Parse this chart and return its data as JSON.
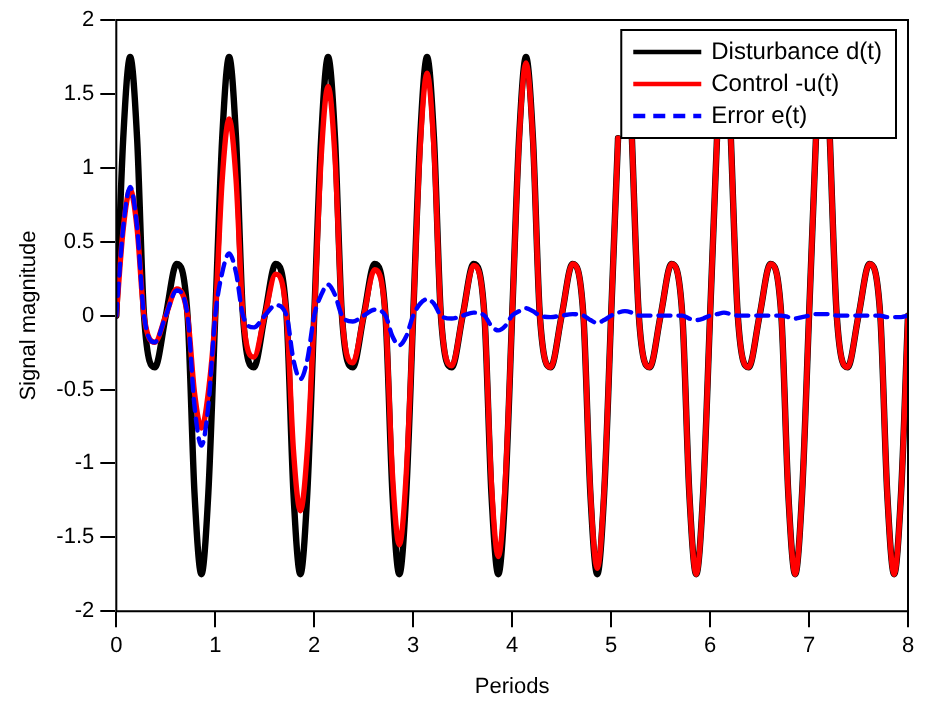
{
  "chart_data": {
    "type": "line",
    "xlabel": "Periods",
    "ylabel": "Signal magnitude",
    "xlim": [
      0,
      8
    ],
    "xticks": [
      0,
      1,
      2,
      3,
      4,
      5,
      6,
      7,
      8
    ],
    "ylim": [
      -2,
      2
    ],
    "yticks": [
      -2,
      -1.5,
      -1,
      -0.5,
      0,
      0.5,
      1,
      1.5,
      2
    ],
    "grid": false,
    "legend": "top right",
    "marker": "none",
    "x": [
      0,
      0.07,
      0.14,
      0.21,
      0.28,
      0.39,
      0.5,
      0.61,
      0.72,
      0.79,
      0.86,
      0.93,
      1,
      1.07,
      1.14,
      1.21,
      1.28,
      1.39,
      1.5,
      1.61,
      1.72,
      1.79,
      1.86,
      1.93,
      2,
      2.07,
      2.14,
      2.21,
      2.28,
      2.39,
      2.5,
      2.61,
      2.72,
      2.79,
      2.86,
      2.93,
      3,
      3.07,
      3.14,
      3.21,
      3.28,
      3.39,
      3.5,
      3.61,
      3.72,
      3.79,
      3.86,
      3.93,
      4,
      4.07,
      4.14,
      4.21,
      4.28,
      4.39,
      4.5,
      4.61,
      4.72,
      4.79,
      4.86,
      4.93,
      5,
      5.07,
      5.14,
      5.21,
      5.28,
      5.39,
      5.5,
      5.61,
      5.72,
      5.79,
      5.86,
      5.93,
      6,
      6.07,
      6.14,
      6.21,
      6.28,
      6.39,
      6.5,
      6.61,
      6.72,
      6.79,
      6.86,
      6.93,
      7,
      7.07,
      7.14,
      7.21,
      7.28,
      7.39,
      7.5,
      7.61,
      7.72,
      7.79,
      7.86,
      7.93,
      8
    ],
    "series": [
      {
        "name": "Disturbance d(t)",
        "color": "#000000",
        "line_style": "solid",
        "values": [
          0,
          1.2,
          1.75,
          1.2,
          0,
          -0.35,
          0,
          0.35,
          0,
          -1.2,
          -1.75,
          -1.2,
          0,
          1.2,
          1.75,
          1.2,
          0,
          -0.35,
          0,
          0.35,
          0,
          -1.2,
          -1.75,
          -1.2,
          0,
          1.2,
          1.75,
          1.2,
          0,
          -0.35,
          0,
          0.35,
          0,
          -1.2,
          -1.75,
          -1.2,
          0,
          1.2,
          1.75,
          1.2,
          0,
          -0.35,
          0,
          0.35,
          0,
          -1.2,
          -1.75,
          -1.2,
          0,
          1.2,
          1.75,
          1.2,
          0,
          -0.35,
          0,
          0.35,
          0,
          -1.2,
          -1.75,
          -1.2,
          0,
          1.2,
          null,
          1.2,
          0,
          -0.35,
          0,
          0.35,
          0,
          -1.2,
          -1.75,
          -1.2,
          0,
          1.2,
          null,
          1.2,
          0,
          -0.35,
          0,
          0.35,
          0,
          -1.2,
          -1.75,
          -1.2,
          0,
          1.2,
          null,
          1.2,
          0,
          -0.35,
          0,
          0.35,
          0,
          -1.2,
          -1.75,
          -1.2,
          0
        ]
      },
      {
        "name": "Control -u(t)",
        "color": "#ff0000",
        "line_style": "solid",
        "values": [
          0,
          0.59,
          0.85,
          0.59,
          0,
          -0.18,
          0,
          0.18,
          0,
          -0.52,
          -0.76,
          -0.52,
          0,
          0.92,
          1.33,
          0.92,
          0,
          -0.28,
          0,
          0.28,
          0,
          -0.91,
          -1.32,
          -0.91,
          0,
          1.07,
          1.55,
          1.07,
          0,
          -0.32,
          0,
          0.31,
          0,
          -1.07,
          -1.55,
          -1.07,
          0,
          1.13,
          1.64,
          1.13,
          0,
          -0.34,
          0,
          0.34,
          0,
          -1.13,
          -1.63,
          -1.13,
          0,
          1.18,
          1.71,
          1.18,
          0,
          -0.35,
          0,
          0.35,
          0,
          -1.18,
          -1.71,
          -1.18,
          0,
          1.2,
          null,
          1.2,
          0,
          -0.35,
          0,
          0.35,
          0,
          -1.2,
          -1.75,
          -1.2,
          0,
          1.2,
          null,
          1.2,
          0,
          -0.35,
          0,
          0.35,
          0,
          -1.2,
          -1.75,
          -1.2,
          0,
          1.2,
          null,
          1.2,
          0,
          -0.35,
          0,
          0.35,
          0,
          -1.2,
          -1.75,
          -1.2,
          0
        ]
      },
      {
        "name": "Error e(t)",
        "color": "#0000ff",
        "line_style": "dashed",
        "values": [
          0,
          0.6,
          0.87,
          0.6,
          0,
          -0.18,
          0,
          0.17,
          0,
          -0.61,
          -0.88,
          -0.61,
          0,
          0.29,
          0.42,
          0.29,
          0,
          -0.08,
          0,
          0.07,
          0,
          -0.3,
          -0.43,
          -0.3,
          0,
          0.14,
          0.21,
          0.14,
          0,
          -0.04,
          0,
          0.04,
          0,
          -0.14,
          -0.2,
          -0.14,
          0,
          0.08,
          0.11,
          0.08,
          0,
          -0.02,
          0,
          0.02,
          0,
          -0.07,
          -0.1,
          -0.07,
          0,
          0.03,
          0.05,
          0.03,
          0,
          -0.01,
          0,
          0.01,
          0,
          -0.03,
          -0.05,
          -0.03,
          0,
          0.02,
          0.03,
          0.02,
          0,
          0,
          0,
          0,
          0,
          -0.02,
          -0.03,
          -0.02,
          0,
          0.01,
          0.02,
          0.01,
          0,
          0,
          0,
          0,
          0,
          -0.01,
          -0.02,
          -0.01,
          0,
          0.01,
          0.01,
          0.01,
          0,
          0,
          0,
          0,
          0,
          -0.01,
          -0.01,
          -0.01,
          0
        ]
      }
    ]
  }
}
